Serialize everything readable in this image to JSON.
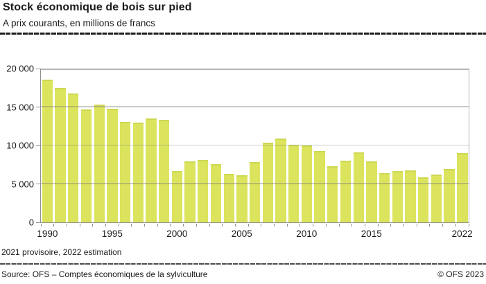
{
  "header": {
    "title": "Stock économique de bois sur pied",
    "subtitle": "A prix courants, en millions de francs"
  },
  "footnote": "2021 provisoire, 2022 estimation",
  "footer": {
    "source": "Source: OFS – Comptes économiques de la sylviculture",
    "copyright": "© OFS 2023"
  },
  "colors": {
    "bar": "#dbe45c",
    "bar_top_edge": "#ccd852",
    "gridline": "#c8c8c8",
    "axis": "#8f8f8f",
    "text": "#1a1a1a"
  },
  "chart_data": {
    "type": "bar",
    "title": "Stock économique de bois sur pied",
    "subtitle": "A prix courants, en millions de francs",
    "unit": "millions de francs (prix courants)",
    "grid": true,
    "legend": false,
    "ylim": [
      0,
      20000
    ],
    "yticks": [
      0,
      5000,
      10000,
      15000,
      20000
    ],
    "ytick_labels": [
      "0",
      "5 000",
      "10 000",
      "15 000",
      "20 000"
    ],
    "categories": [
      1990,
      1991,
      1992,
      1993,
      1994,
      1995,
      1996,
      1997,
      1998,
      1999,
      2000,
      2001,
      2002,
      2003,
      2004,
      2005,
      2006,
      2007,
      2008,
      2009,
      2010,
      2011,
      2012,
      2013,
      2014,
      2015,
      2016,
      2017,
      2018,
      2019,
      2020,
      2021,
      2022
    ],
    "values": [
      18600,
      17500,
      16800,
      14700,
      15300,
      14800,
      13100,
      13000,
      13500,
      13300,
      6700,
      7900,
      8100,
      7600,
      6300,
      6100,
      7800,
      10400,
      10900,
      10100,
      10000,
      9300,
      7300,
      8000,
      9100,
      7900,
      6400,
      6700,
      6800,
      5900,
      6200,
      6900,
      9000
    ],
    "xtick_labels": [
      {
        "label": "1990",
        "bar": 0
      },
      {
        "label": "1995",
        "bar": 5
      },
      {
        "label": "2000",
        "bar": 10
      },
      {
        "label": "2005",
        "bar": 15
      },
      {
        "label": "2010",
        "bar": 20
      },
      {
        "label": "2015",
        "bar": 25
      },
      {
        "label": "2022",
        "bar": 32
      }
    ]
  }
}
